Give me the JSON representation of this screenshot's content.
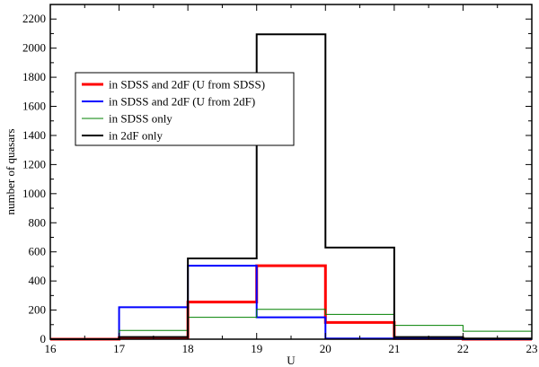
{
  "chart_data": {
    "type": "histogram",
    "xlabel": "U",
    "ylabel": "number of quasars",
    "xlim": [
      16,
      23
    ],
    "ylim": [
      0,
      2300
    ],
    "xticks": [
      16,
      17,
      18,
      19,
      20,
      21,
      22,
      23
    ],
    "yticks": [
      0,
      200,
      400,
      600,
      800,
      1000,
      1200,
      1400,
      1600,
      1800,
      2000,
      2200
    ],
    "bin_edges": [
      16,
      17,
      18,
      19,
      20,
      21,
      22,
      23
    ],
    "legend_position": "upper-left",
    "series": [
      {
        "name": "in SDSS and 2dF (U from SDSS)",
        "color": "#ff0000",
        "width": 3,
        "values": [
          0,
          10,
          255,
          505,
          115,
          5,
          0
        ]
      },
      {
        "name": "in SDSS and 2dF (U from 2dF)",
        "color": "#0000ff",
        "width": 2,
        "values": [
          0,
          220,
          505,
          150,
          5,
          5,
          0
        ]
      },
      {
        "name": "in SDSS only",
        "color": "#008000",
        "width": 1,
        "values": [
          0,
          60,
          150,
          205,
          170,
          95,
          55
        ]
      },
      {
        "name": "in 2dF only",
        "color": "#000000",
        "width": 2,
        "values": [
          0,
          15,
          555,
          2095,
          630,
          15,
          5
        ]
      }
    ]
  }
}
